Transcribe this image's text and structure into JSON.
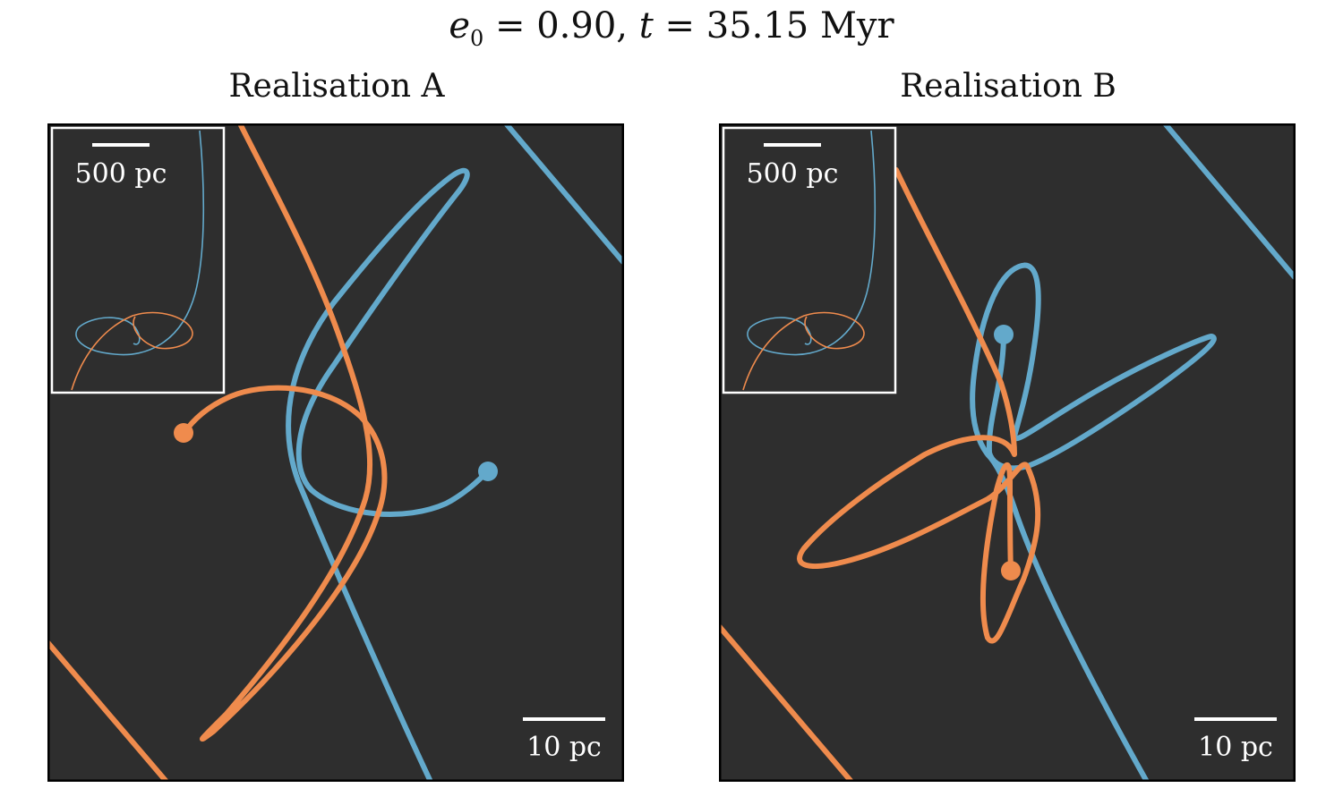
{
  "figure": {
    "title_e": "e",
    "title_e_sub": "0",
    "title_e_value": " = 0.90, ",
    "title_t": "t",
    "title_t_value": " = 35.15 Myr"
  },
  "colors": {
    "background": "#2e2e2e",
    "frame": "#000000",
    "blue": "#63a9cb",
    "orange": "#ef8b4d",
    "scale_bar": "#ffffff"
  },
  "chart_data": [
    {
      "type": "line",
      "title": "Realisation A",
      "main_scale_bar_label": "10 pc",
      "inset_scale_bar_label": "500 pc",
      "series": [],
      "endpoint_markers": 2,
      "grid": false,
      "axes_ticks": false
    },
    {
      "type": "line",
      "title": "Realisation B",
      "main_scale_bar_label": "10 pc",
      "inset_scale_bar_label": "500 pc",
      "series": [],
      "endpoint_markers": 2,
      "grid": false,
      "axes_ticks": false
    }
  ]
}
